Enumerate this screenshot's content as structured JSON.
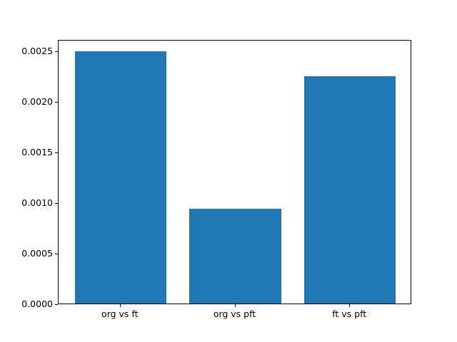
{
  "chart_data": {
    "type": "bar",
    "categories": [
      "org vs ft",
      "org vs pft",
      "ft vs pft"
    ],
    "values": [
      0.00249,
      0.00094,
      0.00225
    ],
    "title": "",
    "xlabel": "",
    "ylabel": "",
    "ylim": [
      0,
      0.002613
    ],
    "yticks": [
      0.0,
      0.0005,
      0.001,
      0.0015,
      0.002,
      0.0025
    ],
    "ytick_labels": [
      "0.0000",
      "0.0005",
      "0.0010",
      "0.0015",
      "0.0020",
      "0.0025"
    ],
    "bar_color": "#1f77b4",
    "axis_color": "#000000",
    "background_color": "#ffffff",
    "grid": false,
    "legend": null,
    "bar_width_fraction": 0.8,
    "x_margin_fraction": 0.05
  }
}
